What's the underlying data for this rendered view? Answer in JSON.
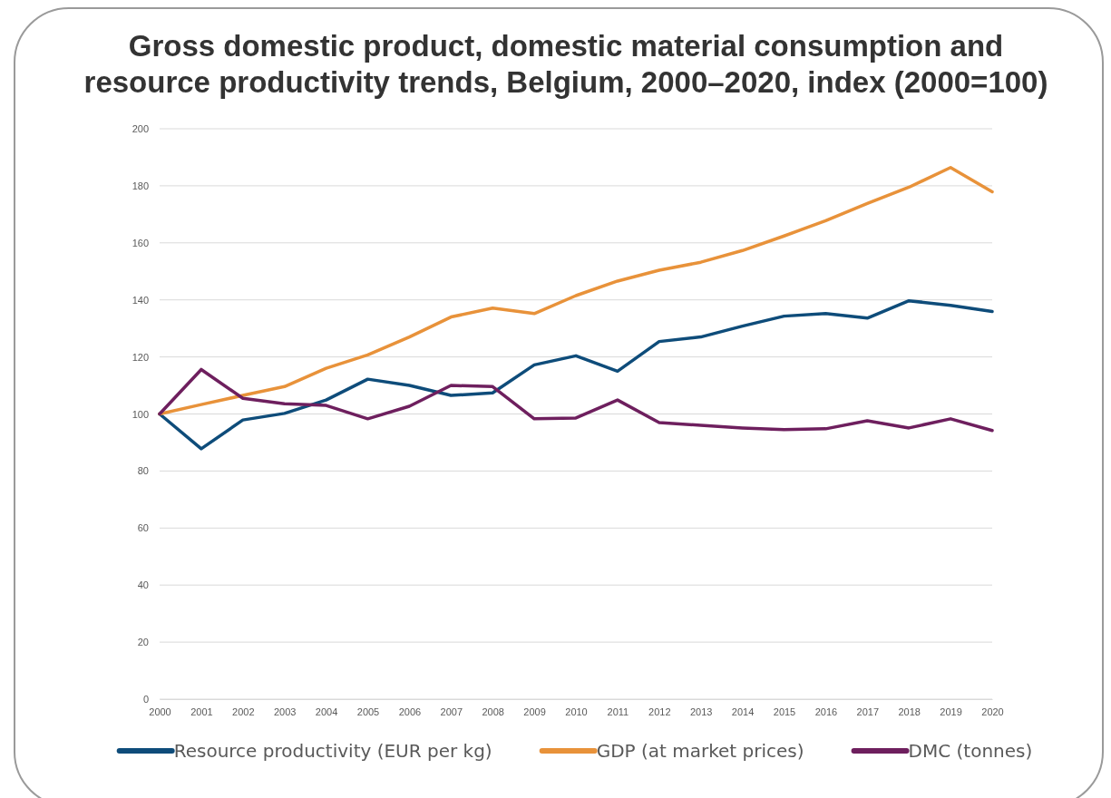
{
  "chart_data": {
    "type": "line",
    "title": "Gross domestic product, domestic material consumption and resource productivity trends, Belgium, 2000–2020, index (2000=100)",
    "categories": [
      "2000",
      "2001",
      "2002",
      "2003",
      "2004",
      "2005",
      "2006",
      "2007",
      "2008",
      "2009",
      "2010",
      "2011",
      "2012",
      "2013",
      "2014",
      "2015",
      "2016",
      "2017",
      "2018",
      "2019",
      "2020"
    ],
    "series": [
      {
        "name": "Resource productivity (EUR per kg)",
        "color": "#0e4c7a",
        "values": [
          100,
          87.8,
          97.9,
          100.2,
          104.9,
          112.2,
          110,
          106.5,
          107.4,
          117.2,
          120.4,
          115,
          125.4,
          127,
          130.8,
          134.3,
          135.2,
          133.6,
          139.7,
          138.1,
          135.9
        ]
      },
      {
        "name": "GDP (at market prices)",
        "color": "#e8923a",
        "values": [
          100,
          103.3,
          106.5,
          109.6,
          116,
          120.7,
          127,
          134,
          137.1,
          135.2,
          141.5,
          146.6,
          150.4,
          153.2,
          157.3,
          162.4,
          167.8,
          173.8,
          179.5,
          186.4,
          177.9
        ]
      },
      {
        "name": "DMC (tonnes)",
        "color": "#6e1f5e",
        "values": [
          100,
          115.6,
          105.5,
          103.6,
          103,
          98.3,
          102.7,
          110,
          109.6,
          98.3,
          98.6,
          104.9,
          97,
          96,
          95.1,
          94.5,
          94.8,
          97.6,
          95.1,
          98.3,
          94.2
        ]
      }
    ],
    "ylim": [
      0,
      200
    ],
    "yticks": [
      0,
      20,
      40,
      60,
      80,
      100,
      120,
      140,
      160,
      180,
      200
    ],
    "grid": "y",
    "legend": "bottom",
    "marker": "none",
    "line_style": "solid"
  }
}
